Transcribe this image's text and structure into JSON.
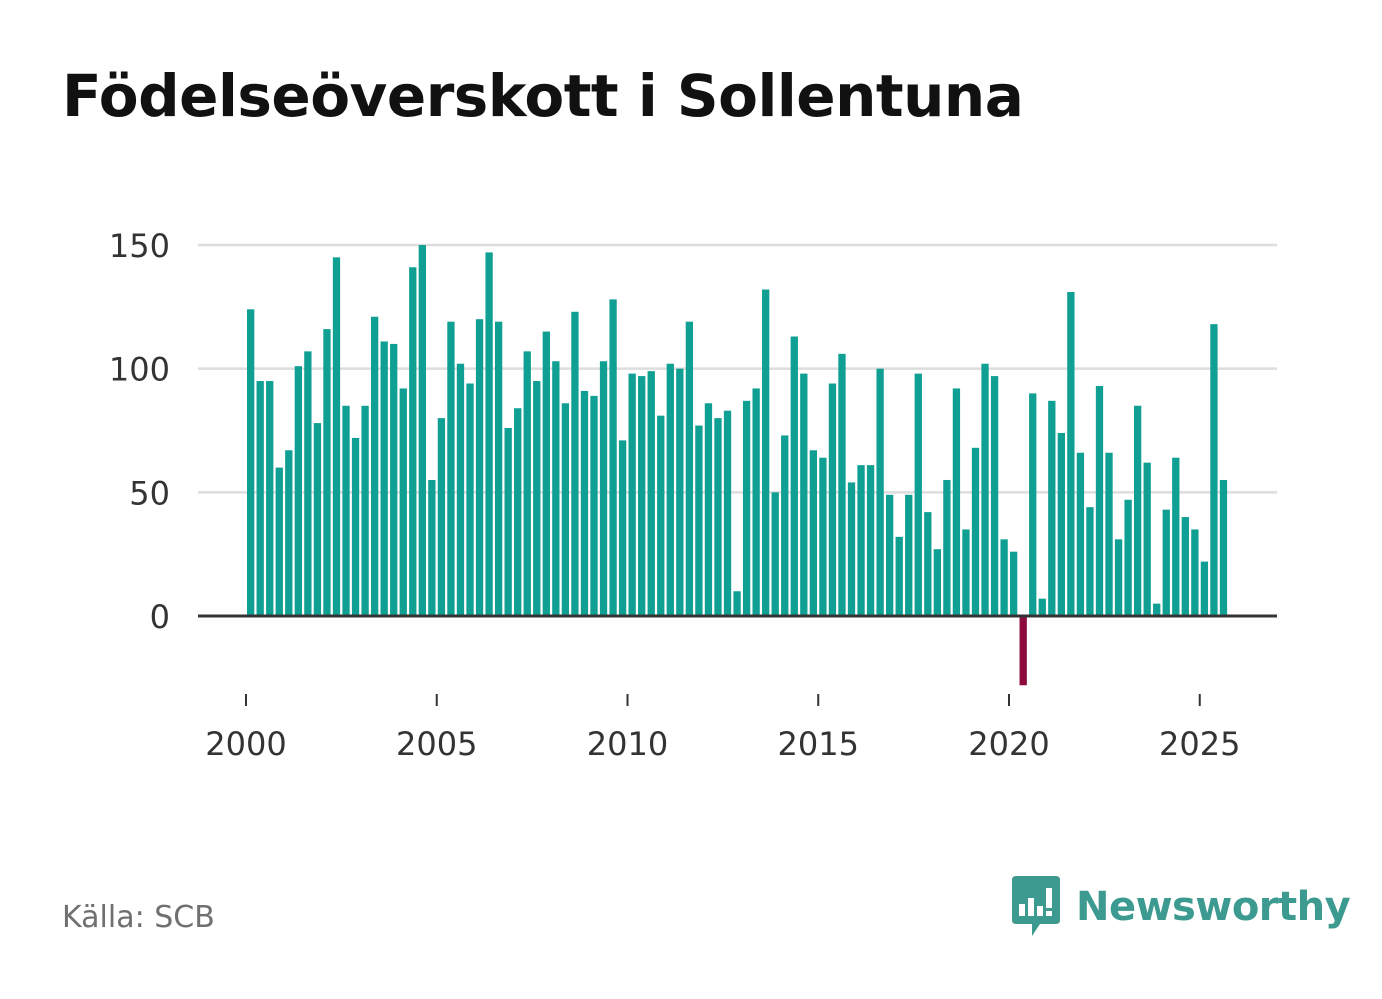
{
  "title": "Födelseöverskott i Sollentuna",
  "source": "Källa: SCB",
  "brand": {
    "name": "Newsworthy",
    "icon": "newsworthy-logo-icon"
  },
  "colors": {
    "positive": "#0f9f93",
    "negative": "#8c0a3c",
    "grid": "#dddddd",
    "axis": "#333333",
    "brand": "#3d9a90"
  },
  "chart_data": {
    "type": "bar",
    "title": "Födelseöverskott i Sollentuna",
    "xlabel": "",
    "ylabel": "",
    "frequency": "quarterly",
    "start": "2000-Q1",
    "ylim": [
      -28,
      150
    ],
    "yticks": [
      0,
      50,
      100,
      150
    ],
    "xticks": [
      "2000",
      "2005",
      "2010",
      "2015",
      "2020",
      "2025"
    ],
    "grid": true,
    "values": [
      124,
      95,
      95,
      60,
      67,
      101,
      107,
      78,
      116,
      145,
      85,
      72,
      85,
      121,
      111,
      110,
      92,
      141,
      150,
      55,
      80,
      119,
      102,
      94,
      120,
      147,
      119,
      76,
      84,
      107,
      95,
      115,
      103,
      86,
      123,
      91,
      89,
      103,
      128,
      71,
      98,
      97,
      99,
      81,
      102,
      100,
      119,
      77,
      86,
      80,
      83,
      10,
      87,
      92,
      132,
      50,
      73,
      113,
      98,
      67,
      64,
      94,
      106,
      54,
      61,
      61,
      100,
      49,
      32,
      49,
      98,
      42,
      27,
      55,
      92,
      35,
      68,
      102,
      97,
      31,
      26,
      -28,
      90,
      7,
      87,
      74,
      131,
      66,
      44,
      93,
      66,
      31,
      47,
      85,
      62,
      5,
      43,
      64,
      40,
      35,
      22,
      118,
      55
    ]
  }
}
